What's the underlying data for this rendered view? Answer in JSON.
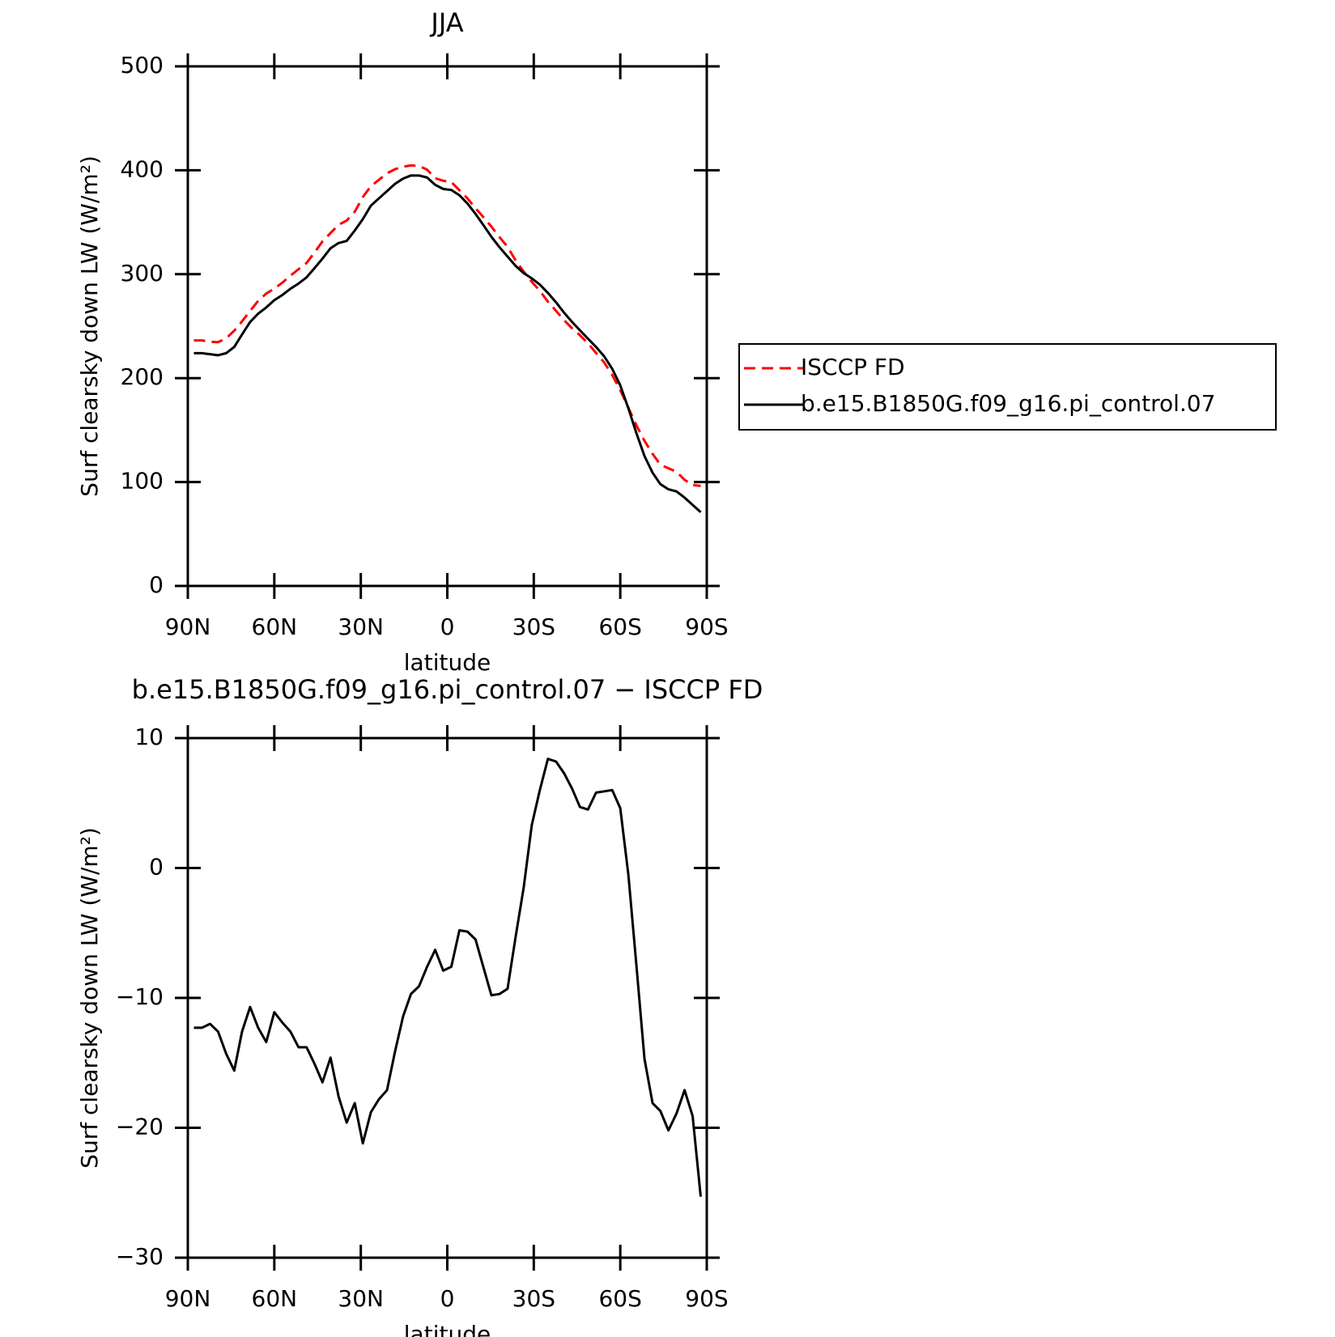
{
  "chart_data": [
    {
      "type": "line",
      "title": "JJA",
      "x_label": "latitude",
      "y_label": "Surf clearsky down LW (W/m²)",
      "x": [
        87.9,
        85.1,
        82.3,
        79.5,
        76.7,
        73.9,
        71.2,
        68.4,
        65.6,
        62.8,
        60.0,
        57.2,
        54.4,
        51.6,
        48.8,
        46.0,
        43.3,
        40.5,
        37.7,
        34.9,
        32.1,
        29.3,
        26.5,
        23.7,
        20.9,
        18.1,
        15.3,
        12.6,
        9.8,
        7.0,
        4.2,
        1.4,
        -1.4,
        -4.2,
        -7.0,
        -9.8,
        -12.6,
        -15.3,
        -18.1,
        -20.9,
        -23.7,
        -26.5,
        -29.3,
        -32.1,
        -34.9,
        -37.7,
        -40.5,
        -43.3,
        -46.0,
        -48.8,
        -51.6,
        -54.4,
        -57.2,
        -60.0,
        -62.8,
        -65.6,
        -68.4,
        -71.2,
        -73.9,
        -76.7,
        -79.5,
        -82.3,
        -85.1,
        -87.9
      ],
      "series": [
        {
          "name": "ISCCP FD",
          "color": "#ff0000",
          "dash": true,
          "values": [
            236.3,
            236.3,
            235.0,
            234.6,
            238.3,
            245.6,
            254.6,
            264.7,
            274.3,
            281.4,
            286.1,
            291.9,
            298.6,
            304.8,
            310.8,
            321.1,
            331.5,
            339.6,
            347.6,
            351.6,
            360.1,
            374.2,
            384.8,
            390.8,
            397.1,
            401.1,
            403.4,
            404.7,
            404.1,
            400.6,
            392.3,
            389.9,
            388.6,
            380.8,
            372.9,
            363.5,
            354.7,
            345.8,
            335.7,
            326.3,
            313.3,
            302.5,
            292.7,
            284.0,
            273.6,
            264.8,
            255.7,
            247.9,
            241.3,
            233.5,
            224.2,
            215.1,
            203.0,
            188.4,
            171.5,
            154.5,
            139.7,
            127.1,
            116.7,
            113.2,
            109.9,
            102.1,
            97.1,
            96.3
          ]
        },
        {
          "name": "b.e15.B1850G.f09_g16.pi_control.07",
          "color": "#000000",
          "dash": false,
          "values": [
            224,
            224,
            223,
            222,
            224,
            230,
            242,
            254,
            262,
            268,
            275,
            280,
            286,
            291,
            297,
            306,
            315,
            325,
            330,
            332,
            342,
            353,
            366,
            373,
            380,
            387,
            392,
            395,
            395,
            393,
            386,
            382,
            381,
            376,
            368,
            358,
            347,
            336,
            326,
            317,
            308,
            301,
            296,
            290,
            282,
            273,
            263,
            254,
            246,
            238,
            230,
            221,
            209,
            193,
            171,
            147,
            125,
            109,
            98,
            93,
            91,
            85,
            78,
            71
          ]
        }
      ],
      "xlim": [
        90,
        -90
      ],
      "xticks": [
        {
          "value": 90,
          "label": "90N"
        },
        {
          "value": 60,
          "label": "60N"
        },
        {
          "value": 30,
          "label": "30N"
        },
        0,
        {
          "value": -30,
          "label": "30S"
        },
        {
          "value": -60,
          "label": "60S"
        },
        {
          "value": -90,
          "label": "90S"
        }
      ],
      "ylim": [
        0,
        500
      ],
      "yticks": [
        0,
        100,
        200,
        300,
        400,
        500
      ],
      "legend": "right"
    },
    {
      "type": "line",
      "title": "b.e15.B1850G.f09_g16.pi_control.07 − ISCCP FD",
      "x_label": "latitude",
      "y_label": "Surf clearsky down LW (W/m²)",
      "x": [
        87.9,
        85.1,
        82.3,
        79.5,
        76.7,
        73.9,
        71.2,
        68.4,
        65.6,
        62.8,
        60.0,
        57.2,
        54.4,
        51.6,
        48.8,
        46.0,
        43.3,
        40.5,
        37.7,
        34.9,
        32.1,
        29.3,
        26.5,
        23.7,
        20.9,
        18.1,
        15.3,
        12.6,
        9.8,
        7.0,
        4.2,
        1.4,
        -1.4,
        -4.2,
        -7.0,
        -9.8,
        -12.6,
        -15.3,
        -18.1,
        -20.9,
        -23.7,
        -26.5,
        -29.3,
        -32.1,
        -34.9,
        -37.7,
        -40.5,
        -43.3,
        -46.0,
        -48.8,
        -51.6,
        -54.4,
        -57.2,
        -60.0,
        -62.8,
        -65.6,
        -68.4,
        -71.2,
        -73.9,
        -76.7,
        -79.5,
        -82.3,
        -85.1,
        -87.9
      ],
      "series": [
        {
          "color": "#000000",
          "dash": false,
          "values": [
            -12.3,
            -12.3,
            -12.0,
            -12.6,
            -14.3,
            -15.6,
            -12.6,
            -10.7,
            -12.3,
            -13.4,
            -11.1,
            -11.9,
            -12.6,
            -13.8,
            -13.8,
            -15.1,
            -16.5,
            -14.6,
            -17.6,
            -19.6,
            -18.1,
            -21.2,
            -18.8,
            -17.8,
            -17.1,
            -14.1,
            -11.4,
            -9.7,
            -9.1,
            -7.6,
            -6.3,
            -7.9,
            -7.6,
            -4.8,
            -4.9,
            -5.5,
            -7.7,
            -9.8,
            -9.7,
            -9.3,
            -5.3,
            -1.5,
            3.3,
            6.0,
            8.4,
            8.2,
            7.3,
            6.1,
            4.7,
            4.5,
            5.8,
            5.9,
            6.0,
            4.6,
            -0.5,
            -7.5,
            -14.7,
            -18.1,
            -18.7,
            -20.2,
            -18.9,
            -17.1,
            -19.1,
            -25.3
          ]
        }
      ],
      "xlim": [
        90,
        -90
      ],
      "xticks": [
        {
          "value": 90,
          "label": "90N"
        },
        {
          "value": 60,
          "label": "60N"
        },
        {
          "value": 30,
          "label": "30N"
        },
        0,
        {
          "value": -30,
          "label": "30S"
        },
        {
          "value": -60,
          "label": "60S"
        },
        {
          "value": -90,
          "label": "90S"
        }
      ],
      "ylim": [
        -30,
        10
      ],
      "yticks": [
        {
          "value": -30,
          "label": "−30"
        },
        {
          "value": -20,
          "label": "−20"
        },
        {
          "value": -10,
          "label": "−10"
        },
        0,
        10
      ]
    }
  ]
}
